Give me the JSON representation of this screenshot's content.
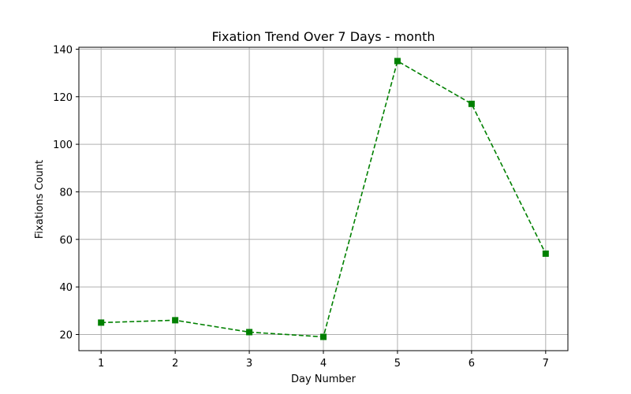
{
  "chart_data": {
    "type": "line",
    "title": "Fixation Trend Over 7 Days - month",
    "xlabel": "Day Number",
    "ylabel": "Fixations Count",
    "x": [
      1,
      2,
      3,
      4,
      5,
      6,
      7
    ],
    "series": [
      {
        "values": [
          25,
          26,
          21,
          19,
          135,
          117,
          54
        ],
        "color": "#008000",
        "line_style": "dashed",
        "marker": "square"
      }
    ],
    "x_ticks": [
      "1",
      "2",
      "3",
      "4",
      "5",
      "6",
      "7"
    ],
    "y_ticks": [
      "20",
      "40",
      "60",
      "80",
      "100",
      "120",
      "140"
    ],
    "xlim": [
      0.7,
      7.3
    ],
    "ylim": [
      13.2,
      140.8
    ],
    "grid": true
  }
}
